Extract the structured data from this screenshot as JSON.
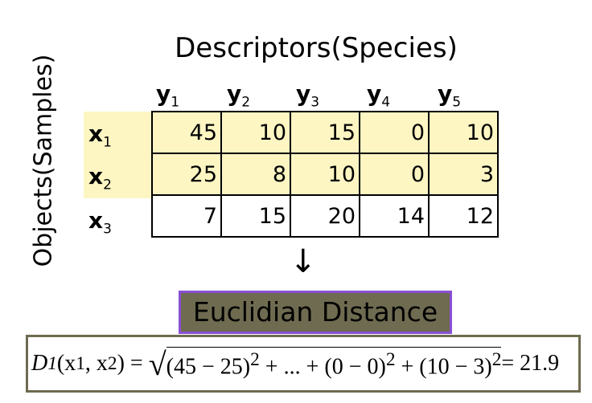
{
  "title": "Descriptors(Species)",
  "side_label": "Objects(Samples)",
  "columns": [
    {
      "base": "y",
      "sub": "1"
    },
    {
      "base": "y",
      "sub": "2"
    },
    {
      "base": "y",
      "sub": "3"
    },
    {
      "base": "y",
      "sub": "4"
    },
    {
      "base": "y",
      "sub": "5"
    }
  ],
  "rows": [
    {
      "base": "x",
      "sub": "1",
      "values": [
        "45",
        "10",
        "15",
        "0",
        "10"
      ]
    },
    {
      "base": "x",
      "sub": "2",
      "values": [
        "25",
        "8",
        "10",
        "0",
        "3"
      ]
    },
    {
      "base": "x",
      "sub": "3",
      "values": [
        "7",
        "15",
        "20",
        "14",
        "12"
      ]
    }
  ],
  "arrow": "↓",
  "method": "Euclidian Distance",
  "formula": {
    "lhs_D": "D",
    "lhs_sub": "1",
    "lhs_args": "(x",
    "lhs_args_sub1": "1",
    "lhs_comma": ", x",
    "lhs_args_sub2": "2",
    "lhs_close": ") =",
    "root": "√",
    "term1": "(45 − 25)",
    "exp1": "2",
    "mid": " + ... + (0 − 0)",
    "exp2": "2",
    "term3": " + (10 − 3)",
    "exp3": "2",
    "result": " = 21.9"
  },
  "colors": {
    "highlight": "#fdf6c3",
    "method_bg": "#6e6b50",
    "method_border": "#8a4fd6",
    "formula_border": "#6e6b50"
  }
}
